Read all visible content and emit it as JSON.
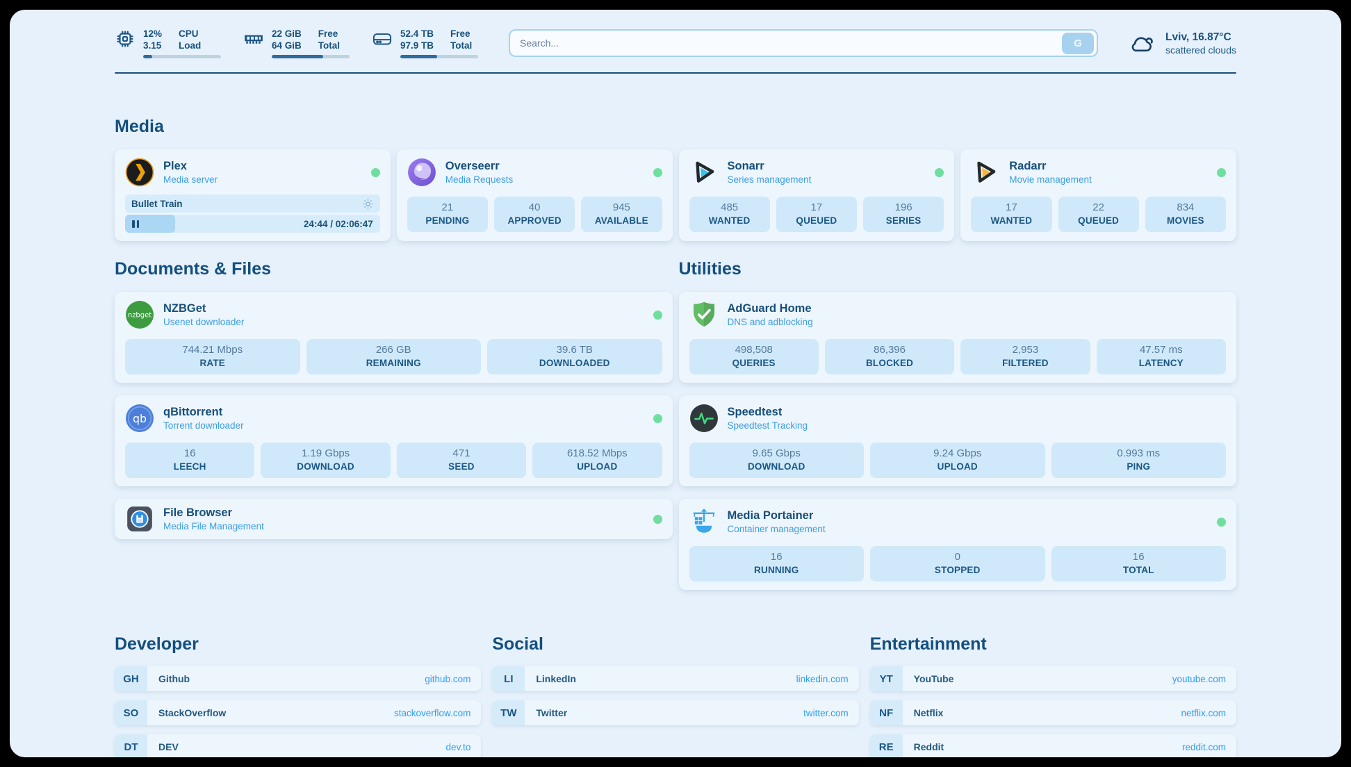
{
  "topbar": {
    "cpu": {
      "icon": "cpu-chip-icon",
      "value1": "12%",
      "value2": "3.15",
      "label1": "CPU",
      "label2": "Load",
      "percent": 12
    },
    "ram": {
      "icon": "memory-icon",
      "value1": "22 GiB",
      "value2": "64 GiB",
      "label1": "Free",
      "label2": "Total",
      "percent": 66
    },
    "disk": {
      "icon": "disk-icon",
      "value1": "52.4 TB",
      "value2": "97.9 TB",
      "label1": "Free",
      "label2": "Total",
      "percent": 47
    },
    "search": {
      "placeholder": "Search...",
      "button": "G"
    },
    "weather": {
      "icon": "cloud-icon",
      "line1": "Lviv, 16.87°C",
      "line2": "scattered clouds"
    }
  },
  "media": {
    "title": "Media",
    "plex": {
      "title": "Plex",
      "subtitle": "Media server",
      "online": true,
      "now_playing": "Bullet Train",
      "time": "24:44 / 02:06:47",
      "progress_percent": 19.5
    },
    "overseerr": {
      "title": "Overseerr",
      "subtitle": "Media Requests",
      "online": true,
      "stats": [
        {
          "value": "21",
          "label": "PENDING"
        },
        {
          "value": "40",
          "label": "APPROVED"
        },
        {
          "value": "945",
          "label": "AVAILABLE"
        }
      ]
    },
    "sonarr": {
      "title": "Sonarr",
      "subtitle": "Series management",
      "online": true,
      "stats": [
        {
          "value": "485",
          "label": "WANTED"
        },
        {
          "value": "17",
          "label": "QUEUED"
        },
        {
          "value": "196",
          "label": "SERIES"
        }
      ]
    },
    "radarr": {
      "title": "Radarr",
      "subtitle": "Movie management",
      "online": true,
      "stats": [
        {
          "value": "17",
          "label": "WANTED"
        },
        {
          "value": "22",
          "label": "QUEUED"
        },
        {
          "value": "834",
          "label": "MOVIES"
        }
      ]
    }
  },
  "documents": {
    "title": "Documents & Files",
    "nzbget": {
      "title": "NZBGet",
      "subtitle": "Usenet downloader",
      "online": true,
      "stats": [
        {
          "value": "744.21 Mbps",
          "label": "RATE"
        },
        {
          "value": "266 GB",
          "label": "REMAINING"
        },
        {
          "value": "39.6 TB",
          "label": "DOWNLOADED"
        }
      ]
    },
    "qbittorrent": {
      "title": "qBittorrent",
      "subtitle": "Torrent downloader",
      "online": true,
      "stats": [
        {
          "value": "16",
          "label": "LEECH"
        },
        {
          "value": "1.19 Gbps",
          "label": "DOWNLOAD"
        },
        {
          "value": "471",
          "label": "SEED"
        },
        {
          "value": "618.52 Mbps",
          "label": "UPLOAD"
        }
      ]
    },
    "filebrowser": {
      "title": "File Browser",
      "subtitle": "Media File Management",
      "online": true
    }
  },
  "utilities": {
    "title": "Utilities",
    "adguard": {
      "title": "AdGuard Home",
      "subtitle": "DNS and adblocking",
      "stats": [
        {
          "value": "498,508",
          "label": "QUERIES"
        },
        {
          "value": "86,396",
          "label": "BLOCKED"
        },
        {
          "value": "2,953",
          "label": "FILTERED"
        },
        {
          "value": "47.57 ms",
          "label": "LATENCY"
        }
      ]
    },
    "speedtest": {
      "title": "Speedtest",
      "subtitle": "Speedtest Tracking",
      "stats": [
        {
          "value": "9.65 Gbps",
          "label": "DOWNLOAD"
        },
        {
          "value": "9.24 Gbps",
          "label": "UPLOAD"
        },
        {
          "value": "0.993 ms",
          "label": "PING"
        }
      ]
    },
    "portainer": {
      "title": "Media Portainer",
      "subtitle": "Container management",
      "online": true,
      "stats": [
        {
          "value": "16",
          "label": "RUNNING"
        },
        {
          "value": "0",
          "label": "STOPPED"
        },
        {
          "value": "16",
          "label": "TOTAL"
        }
      ]
    }
  },
  "bookmarks": {
    "developer": {
      "title": "Developer",
      "items": [
        {
          "abbr": "GH",
          "name": "Github",
          "url": "github.com"
        },
        {
          "abbr": "SO",
          "name": "StackOverflow",
          "url": "stackoverflow.com"
        },
        {
          "abbr": "DT",
          "name": "DEV",
          "url": "dev.to"
        }
      ]
    },
    "social": {
      "title": "Social",
      "items": [
        {
          "abbr": "LI",
          "name": "LinkedIn",
          "url": "linkedin.com"
        },
        {
          "abbr": "TW",
          "name": "Twitter",
          "url": "twitter.com"
        }
      ]
    },
    "entertainment": {
      "title": "Entertainment",
      "items": [
        {
          "abbr": "YT",
          "name": "YouTube",
          "url": "youtube.com"
        },
        {
          "abbr": "NF",
          "name": "Netflix",
          "url": "netflix.com"
        },
        {
          "abbr": "RE",
          "name": "Reddit",
          "url": "reddit.com"
        }
      ]
    }
  },
  "colors": {
    "accent": "#2e9ff0",
    "status_online": "#6fdf9f",
    "navy": "#17527d",
    "page_bg": "#e7f1fb",
    "stat_bg": "#cfe9fa"
  }
}
